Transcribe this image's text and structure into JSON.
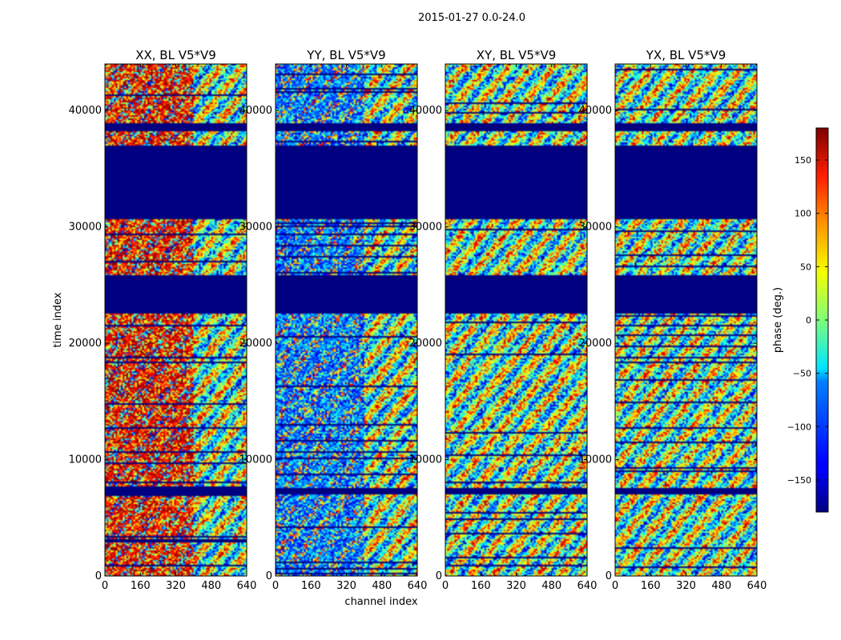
{
  "figure": {
    "suptitle": "2015-01-27 0.0-24.0",
    "xlabel": "channel index",
    "ylabel": "time index",
    "colorbar_label": "phase (deg.)"
  },
  "chart_data": {
    "type": "heatmap",
    "title": "2015-01-27 0.0-24.0",
    "xlabel": "channel index",
    "ylabel": "time index",
    "xlim": [
      0,
      640
    ],
    "ylim": [
      0,
      44000
    ],
    "x_ticks": [
      0,
      160,
      320,
      480,
      640
    ],
    "y_ticks": [
      0,
      10000,
      20000,
      30000,
      40000
    ],
    "colorbar": {
      "label": "phase (deg.)",
      "range": [
        -180,
        180
      ],
      "ticks": [
        -150,
        -100,
        -50,
        0,
        50,
        100,
        150
      ],
      "tick_labels": [
        "−150",
        "−100",
        "−50",
        "0",
        "50",
        "100",
        "150"
      ],
      "colormap": "jet"
    },
    "panels": [
      {
        "title": "XX, BL V5*V9",
        "polarization": "XX",
        "baseline": "V5*V9"
      },
      {
        "title": "YY, BL V5*V9",
        "polarization": "YY",
        "baseline": "V5*V9"
      },
      {
        "title": "XY, BL V5*V9",
        "polarization": "XY",
        "baseline": "V5*V9"
      },
      {
        "title": "YX, BL V5*V9",
        "polarization": "YX",
        "baseline": "V5*V9"
      }
    ],
    "flagged_time_ranges": [
      [
        22500,
        25800
      ],
      [
        30600,
        37000
      ],
      [
        38200,
        38900
      ],
      [
        7000,
        7500
      ]
    ]
  }
}
